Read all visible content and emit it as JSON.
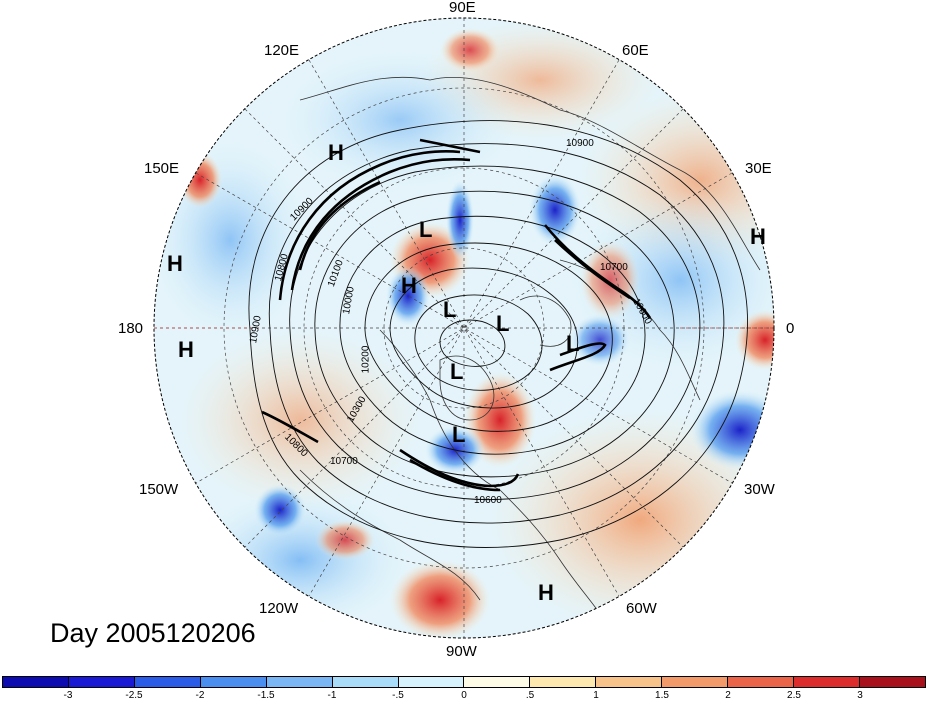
{
  "longitude_labels": [
    {
      "id": "90e",
      "text": "90E"
    },
    {
      "id": "120e",
      "text": "120E"
    },
    {
      "id": "60e",
      "text": "60E"
    },
    {
      "id": "150e",
      "text": "150E"
    },
    {
      "id": "30e",
      "text": "30E"
    },
    {
      "id": "180",
      "text": "180"
    },
    {
      "id": "0",
      "text": "0"
    },
    {
      "id": "150w",
      "text": "150W"
    },
    {
      "id": "30w",
      "text": "30W"
    },
    {
      "id": "120w",
      "text": "120W"
    },
    {
      "id": "60w",
      "text": "60W"
    },
    {
      "id": "90w",
      "text": "90W"
    }
  ],
  "pressure_systems": [
    "H",
    "L",
    "H",
    "H",
    "H",
    "L",
    "L",
    "L",
    "L",
    "L",
    "H",
    "L",
    "H"
  ],
  "contour_labels": [
    "10900",
    "10900",
    "10800",
    "10700",
    "10600",
    "10100",
    "10000",
    "10200",
    "10300",
    "10700",
    "10800",
    "10600",
    "10900"
  ],
  "title": "Day 2005120206",
  "colorbar": {
    "ticks": [
      "-3",
      "-2.5",
      "-2",
      "-1.5",
      "-1",
      "-.5",
      "0",
      ".5",
      "1",
      "1.5",
      "2",
      "2.5",
      "3"
    ],
    "colors": [
      "#1a1ad4",
      "#2a5ce8",
      "#4a8ef0",
      "#7ab6f4",
      "#a8dcf8",
      "#d6f2fc",
      "#fdfbe6",
      "#fde8b0",
      "#f8c38a",
      "#f29a6a",
      "#ea6449",
      "#dc2c2c",
      "#b0101c"
    ]
  }
}
